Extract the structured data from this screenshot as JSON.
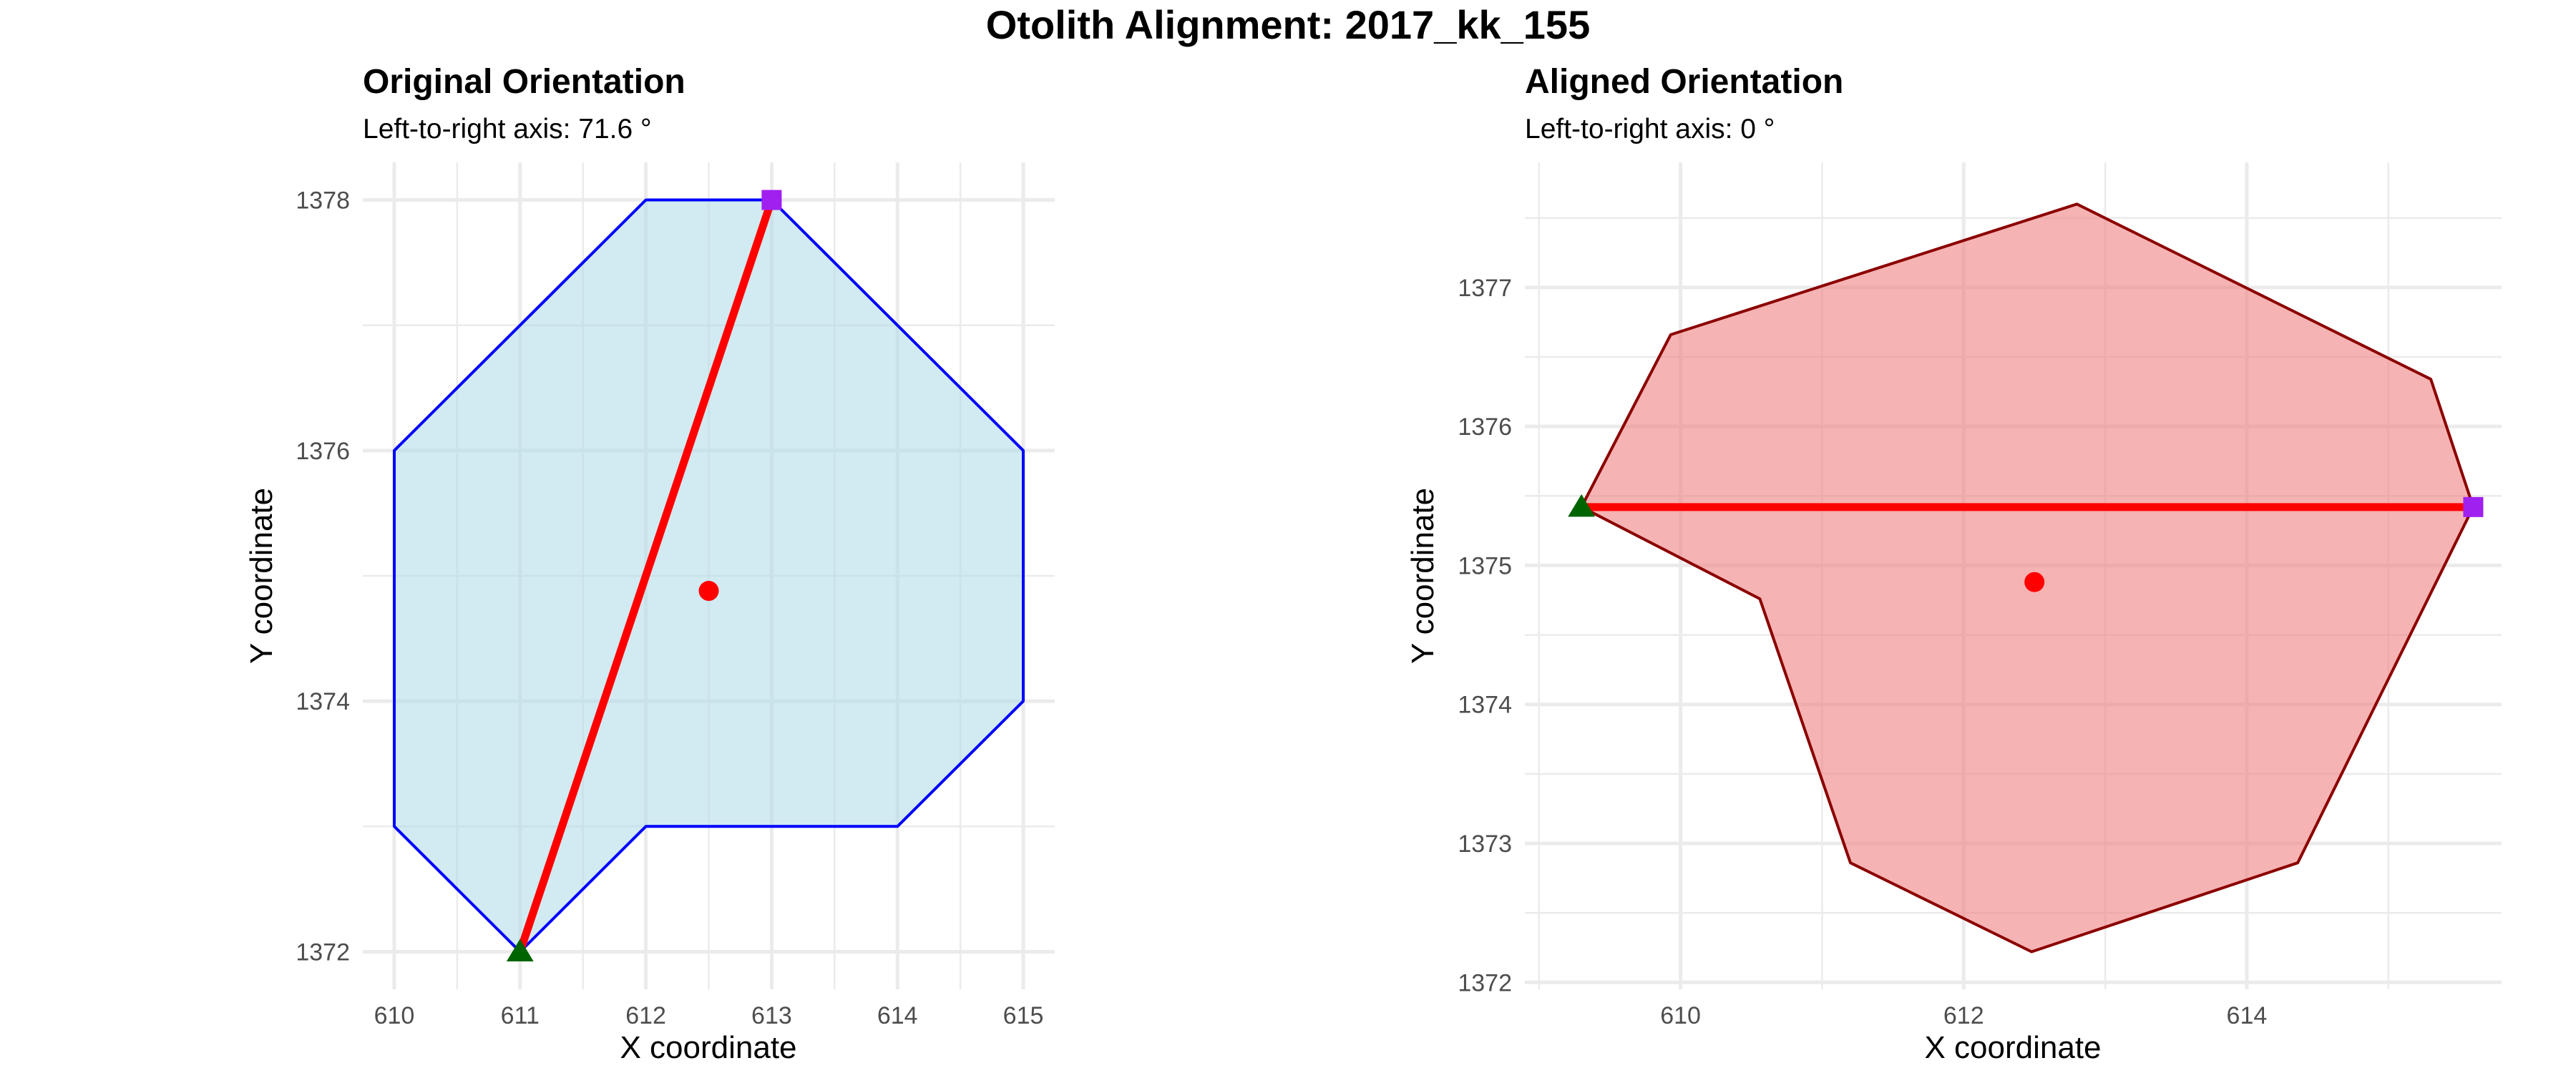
{
  "figure_title": "Otolith Alignment: 2017_kk_155",
  "chart_data": [
    {
      "type": "area",
      "title": "Original Orientation",
      "subtitle": "Left-to-right axis: 71.6 °",
      "xlabel": "X coordinate",
      "ylabel": "Y coordinate",
      "xlim": [
        609.75,
        615.25
      ],
      "ylim": [
        1371.7,
        1378.3
      ],
      "x_ticks": [
        610,
        611,
        612,
        613,
        614,
        615
      ],
      "y_ticks": [
        1372,
        1374,
        1376,
        1378
      ],
      "grid": true,
      "fill_color": "#add8e6",
      "outline_color": "#0000ff",
      "outline": [
        {
          "x": 611,
          "y": 1372
        },
        {
          "x": 610,
          "y": 1373
        },
        {
          "x": 610,
          "y": 1374
        },
        {
          "x": 610,
          "y": 1375
        },
        {
          "x": 610,
          "y": 1376
        },
        {
          "x": 611,
          "y": 1377
        },
        {
          "x": 612,
          "y": 1378
        },
        {
          "x": 613,
          "y": 1378
        },
        {
          "x": 614,
          "y": 1377
        },
        {
          "x": 615,
          "y": 1376
        },
        {
          "x": 615,
          "y": 1375
        },
        {
          "x": 615,
          "y": 1374
        },
        {
          "x": 614,
          "y": 1373
        },
        {
          "x": 613,
          "y": 1373
        },
        {
          "x": 612,
          "y": 1373
        }
      ],
      "axis_line": {
        "from": {
          "x": 611,
          "y": 1372
        },
        "to": {
          "x": 613,
          "y": 1378
        },
        "color": "#ff0000"
      },
      "start_point": {
        "x": 611,
        "y": 1372,
        "shape": "triangle",
        "color": "#006400"
      },
      "end_point": {
        "x": 613,
        "y": 1378,
        "shape": "square",
        "color": "#a020f0"
      },
      "centroid": {
        "x": 612.5,
        "y": 1374.88,
        "color": "#ff0000"
      }
    },
    {
      "type": "area",
      "title": "Aligned Orientation",
      "subtitle": "Left-to-right axis: 0 °",
      "xlabel": "X coordinate",
      "ylabel": "Y coordinate",
      "xlim": [
        608.9,
        615.8
      ],
      "ylim": [
        1371.95,
        1377.9
      ],
      "x_ticks": [
        610,
        612,
        614
      ],
      "y_ticks": [
        1372,
        1373,
        1374,
        1375,
        1376,
        1377
      ],
      "grid": true,
      "fill_color": "#f08080",
      "outline_color": "#8b0000",
      "outline": [
        {
          "x": 609.3,
          "y": 1375.42
        },
        {
          "x": 609.93,
          "y": 1376.66
        },
        {
          "x": 612.8,
          "y": 1377.6
        },
        {
          "x": 615.3,
          "y": 1376.34
        },
        {
          "x": 615.6,
          "y": 1375.42
        },
        {
          "x": 614.36,
          "y": 1372.86
        },
        {
          "x": 612.48,
          "y": 1372.22
        },
        {
          "x": 611.2,
          "y": 1372.86
        },
        {
          "x": 610.56,
          "y": 1374.76
        }
      ],
      "axis_line": {
        "from": {
          "x": 609.3,
          "y": 1375.42
        },
        "to": {
          "x": 615.6,
          "y": 1375.42
        },
        "color": "#ff0000"
      },
      "start_point": {
        "x": 609.3,
        "y": 1375.42,
        "shape": "triangle",
        "color": "#006400"
      },
      "end_point": {
        "x": 615.6,
        "y": 1375.42,
        "shape": "square",
        "color": "#a020f0"
      },
      "centroid": {
        "x": 612.5,
        "y": 1374.88,
        "color": "#ff0000"
      }
    }
  ]
}
